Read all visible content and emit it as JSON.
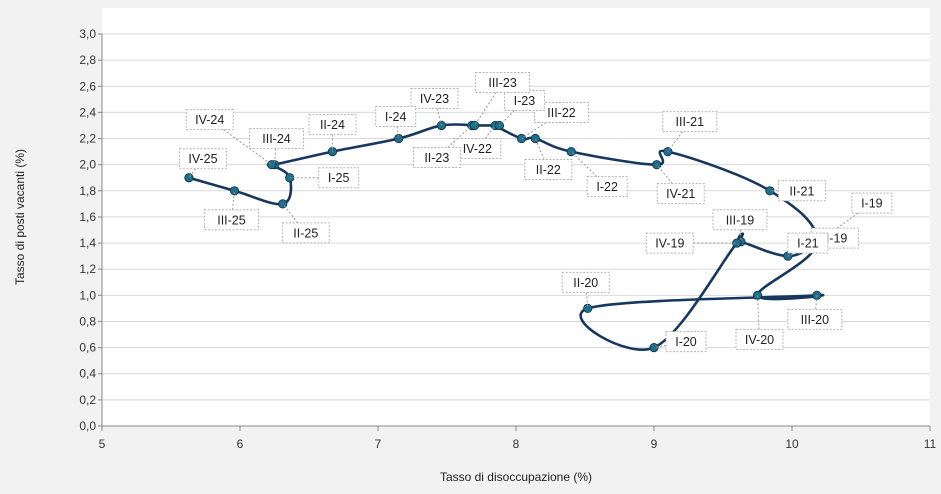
{
  "chart_data": {
    "type": "scatter",
    "mode": "connected-lines",
    "xlabel": "Tasso di disoccupazione (%)",
    "ylabel": "Tasso di posti vacanti (%)",
    "xlim": [
      5,
      11
    ],
    "ylim": [
      0,
      3
    ],
    "x_ticks": [
      "5",
      "6",
      "7",
      "8",
      "9",
      "10",
      "11"
    ],
    "y_ticks": [
      "0,0",
      "0,2",
      "0,4",
      "0,6",
      "0,8",
      "1,0",
      "1,2",
      "1,4",
      "1,6",
      "1,8",
      "2,0",
      "2,2",
      "2,4",
      "2,6",
      "2,8",
      "3,0"
    ],
    "grid": "horizontal",
    "line_color": "#17375e",
    "marker_color": "#1f6f8b",
    "plot_background": "#ffffff",
    "page_background": "#f2f2f2",
    "points": [
      {
        "label": "I-19",
        "x": 10.18,
        "y": 1.4
      },
      {
        "label": "II-19",
        "x": 9.97,
        "y": 1.3
      },
      {
        "label": "III-19",
        "x": 9.63,
        "y": 1.41
      },
      {
        "label": "IV-19",
        "x": 9.6,
        "y": 1.4
      },
      {
        "label": "I-20",
        "x": 9.0,
        "y": 0.6
      },
      {
        "label": "II-20",
        "x": 8.52,
        "y": 0.9
      },
      {
        "label": "III-20",
        "x": 10.18,
        "y": 1.0
      },
      {
        "label": "IV-20",
        "x": 9.75,
        "y": 1.0
      },
      {
        "label": "I-21",
        "x": 10.18,
        "y": 1.4
      },
      {
        "label": "II-21",
        "x": 9.84,
        "y": 1.8
      },
      {
        "label": "III-21",
        "x": 9.1,
        "y": 2.1
      },
      {
        "label": "IV-21",
        "x": 9.02,
        "y": 2.0
      },
      {
        "label": "I-22",
        "x": 8.4,
        "y": 2.1
      },
      {
        "label": "II-22",
        "x": 8.14,
        "y": 2.2
      },
      {
        "label": "III-22",
        "x": 8.04,
        "y": 2.2
      },
      {
        "label": "IV-22",
        "x": 7.85,
        "y": 2.3
      },
      {
        "label": "I-23",
        "x": 7.88,
        "y": 2.3
      },
      {
        "label": "II-23",
        "x": 7.68,
        "y": 2.3
      },
      {
        "label": "III-23",
        "x": 7.7,
        "y": 2.3
      },
      {
        "label": "IV-23",
        "x": 7.46,
        "y": 2.3
      },
      {
        "label": "I-24",
        "x": 7.15,
        "y": 2.2
      },
      {
        "label": "II-24",
        "x": 6.67,
        "y": 2.1
      },
      {
        "label": "III-24",
        "x": 6.25,
        "y": 2.0
      },
      {
        "label": "IV-24",
        "x": 6.23,
        "y": 2.0
      },
      {
        "label": "I-25",
        "x": 6.36,
        "y": 1.9
      },
      {
        "label": "II-25",
        "x": 6.31,
        "y": 1.7
      },
      {
        "label": "III-25",
        "x": 5.96,
        "y": 1.8
      },
      {
        "label": "IV-25",
        "x": 5.63,
        "y": 1.9
      }
    ]
  }
}
